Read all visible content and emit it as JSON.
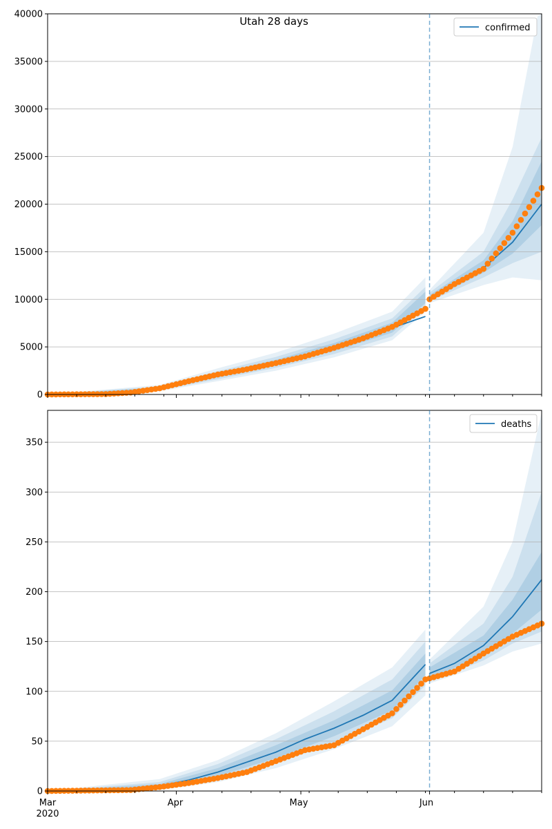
{
  "figure": {
    "title": "Utah 28 days",
    "year_label": "2020",
    "x_tick_labels": [
      "Mar",
      "Apr",
      "May",
      "Jun"
    ],
    "forecast_line_date": "2020-06-01"
  },
  "colors": {
    "model": "#1f77b4",
    "observed": "#ff7f0e",
    "band": "#1f77b4",
    "grid": "#b0b0b0",
    "forecast_line": "#1f77b4"
  },
  "chart_data": [
    {
      "type": "line",
      "name_key": "confirmed",
      "legend": "confirmed",
      "legend_position": "top-right",
      "grid": "horizontal",
      "x_start_date": "2020-03-01",
      "x_end_date": "2020-06-28",
      "ylim": [
        0,
        40000
      ],
      "yticks": [
        0,
        5000,
        10000,
        15000,
        20000,
        25000,
        30000,
        35000,
        40000
      ],
      "model_anchors": [
        [
          "2020-03-01",
          0
        ],
        [
          "2020-03-15",
          40
        ],
        [
          "2020-03-21",
          230
        ],
        [
          "2020-03-28",
          650
        ],
        [
          "2020-04-04",
          1350
        ],
        [
          "2020-04-11",
          2000
        ],
        [
          "2020-04-18",
          2650
        ],
        [
          "2020-04-25",
          3300
        ],
        [
          "2020-05-02",
          4050
        ],
        [
          "2020-05-09",
          4950
        ],
        [
          "2020-05-16",
          5950
        ],
        [
          "2020-05-23",
          7000
        ],
        [
          "2020-05-31",
          8200
        ],
        [
          "2020-06-01",
          10000
        ],
        [
          "2020-06-07",
          11700
        ],
        [
          "2020-06-14",
          13300
        ],
        [
          "2020-06-21",
          16000
        ],
        [
          "2020-06-28",
          20000
        ]
      ],
      "observed_anchors": [
        [
          "2020-03-01",
          0
        ],
        [
          "2020-03-15",
          40
        ],
        [
          "2020-03-21",
          200
        ],
        [
          "2020-03-28",
          650
        ],
        [
          "2020-04-04",
          1400
        ],
        [
          "2020-04-11",
          2100
        ],
        [
          "2020-04-18",
          2650
        ],
        [
          "2020-04-25",
          3300
        ],
        [
          "2020-05-02",
          4000
        ],
        [
          "2020-05-09",
          4900
        ],
        [
          "2020-05-16",
          5900
        ],
        [
          "2020-05-23",
          7100
        ],
        [
          "2020-05-31",
          9000
        ],
        [
          "2020-06-01",
          10000
        ],
        [
          "2020-06-07",
          11600
        ],
        [
          "2020-06-14",
          13200
        ],
        [
          "2020-06-21",
          17000
        ],
        [
          "2020-06-28",
          21700
        ]
      ],
      "band_inner_anchors": [
        [
          "2020-03-01",
          0,
          0
        ],
        [
          "2020-03-28",
          550,
          750
        ],
        [
          "2020-04-11",
          1800,
          2250
        ],
        [
          "2020-04-25",
          3050,
          3650
        ],
        [
          "2020-05-09",
          4550,
          5400
        ],
        [
          "2020-05-23",
          6500,
          7550
        ],
        [
          "2020-05-31",
          9600,
          10800
        ],
        [
          "2020-06-01",
          9950,
          10450
        ],
        [
          "2020-06-14",
          12800,
          14100
        ],
        [
          "2020-06-21",
          14800,
          18200
        ],
        [
          "2020-06-28",
          17800,
          24500
        ]
      ],
      "band_mid_anchors": [
        [
          "2020-03-01",
          0,
          0
        ],
        [
          "2020-03-28",
          450,
          850
        ],
        [
          "2020-04-11",
          1600,
          2450
        ],
        [
          "2020-04-25",
          2800,
          3950
        ],
        [
          "2020-05-09",
          4250,
          5800
        ],
        [
          "2020-05-23",
          6100,
          8000
        ],
        [
          "2020-05-31",
          9200,
          11300
        ],
        [
          "2020-06-01",
          9800,
          10700
        ],
        [
          "2020-06-14",
          12300,
          15000
        ],
        [
          "2020-06-21",
          13800,
          20500
        ],
        [
          "2020-06-28",
          15000,
          27000
        ]
      ],
      "band_outer_anchors": [
        [
          "2020-03-01",
          0,
          0
        ],
        [
          "2020-03-28",
          350,
          1000
        ],
        [
          "2020-04-11",
          1400,
          2750
        ],
        [
          "2020-04-25",
          2500,
          4400
        ],
        [
          "2020-05-09",
          3900,
          6400
        ],
        [
          "2020-05-23",
          5700,
          8700
        ],
        [
          "2020-05-31",
          8700,
          12300
        ],
        [
          "2020-06-01",
          9600,
          11000
        ],
        [
          "2020-06-14",
          11500,
          17000
        ],
        [
          "2020-06-21",
          12300,
          26000
        ],
        [
          "2020-06-28",
          12000,
          42000
        ]
      ]
    },
    {
      "type": "line",
      "name_key": "deaths",
      "legend": "deaths",
      "legend_position": "top-right",
      "grid": "horizontal",
      "x_start_date": "2020-03-01",
      "x_end_date": "2020-06-28",
      "ylim": [
        0,
        382
      ],
      "yticks": [
        0,
        50,
        100,
        150,
        200,
        250,
        300,
        350
      ],
      "model_anchors": [
        [
          "2020-03-01",
          0
        ],
        [
          "2020-03-21",
          2
        ],
        [
          "2020-03-28",
          5
        ],
        [
          "2020-04-04",
          11
        ],
        [
          "2020-04-11",
          19
        ],
        [
          "2020-04-18",
          29
        ],
        [
          "2020-04-25",
          39
        ],
        [
          "2020-05-02",
          52
        ],
        [
          "2020-05-09",
          63
        ],
        [
          "2020-05-16",
          76
        ],
        [
          "2020-05-23",
          91
        ],
        [
          "2020-05-31",
          127
        ],
        [
          "2020-06-01",
          118
        ],
        [
          "2020-06-07",
          128
        ],
        [
          "2020-06-14",
          146
        ],
        [
          "2020-06-21",
          175
        ],
        [
          "2020-06-28",
          212
        ]
      ],
      "observed_anchors": [
        [
          "2020-03-01",
          0
        ],
        [
          "2020-03-21",
          1
        ],
        [
          "2020-03-28",
          4
        ],
        [
          "2020-04-04",
          8
        ],
        [
          "2020-04-11",
          13
        ],
        [
          "2020-04-18",
          19
        ],
        [
          "2020-04-25",
          30
        ],
        [
          "2020-05-02",
          41
        ],
        [
          "2020-05-09",
          46
        ],
        [
          "2020-05-16",
          62
        ],
        [
          "2020-05-23",
          78
        ],
        [
          "2020-05-31",
          112
        ],
        [
          "2020-06-01",
          113
        ],
        [
          "2020-06-07",
          120
        ],
        [
          "2020-06-14",
          138
        ],
        [
          "2020-06-21",
          155
        ],
        [
          "2020-06-28",
          168
        ]
      ],
      "band_inner_anchors": [
        [
          "2020-03-01",
          0,
          0
        ],
        [
          "2020-03-28",
          3,
          7
        ],
        [
          "2020-04-11",
          15,
          23
        ],
        [
          "2020-04-25",
          33,
          46
        ],
        [
          "2020-05-09",
          55,
          71
        ],
        [
          "2020-05-23",
          81,
          101
        ],
        [
          "2020-05-31",
          116,
          138
        ],
        [
          "2020-06-01",
          112,
          124
        ],
        [
          "2020-06-14",
          137,
          156
        ],
        [
          "2020-06-21",
          158,
          192
        ],
        [
          "2020-06-28",
          182,
          240
        ]
      ],
      "band_mid_anchors": [
        [
          "2020-03-01",
          0,
          0
        ],
        [
          "2020-03-28",
          2,
          9
        ],
        [
          "2020-04-11",
          12,
          27
        ],
        [
          "2020-04-25",
          28,
          52
        ],
        [
          "2020-05-09",
          48,
          80
        ],
        [
          "2020-05-23",
          73,
          112
        ],
        [
          "2020-05-31",
          106,
          150
        ],
        [
          "2020-06-01",
          110,
          128
        ],
        [
          "2020-06-14",
          131,
          168
        ],
        [
          "2020-06-21",
          148,
          215
        ],
        [
          "2020-06-28",
          160,
          300
        ]
      ],
      "band_outer_anchors": [
        [
          "2020-03-01",
          0,
          0
        ],
        [
          "2020-03-28",
          1,
          12
        ],
        [
          "2020-04-11",
          9,
          31
        ],
        [
          "2020-04-25",
          23,
          58
        ],
        [
          "2020-05-09",
          42,
          90
        ],
        [
          "2020-05-23",
          65,
          124
        ],
        [
          "2020-05-31",
          96,
          162
        ],
        [
          "2020-06-01",
          108,
          132
        ],
        [
          "2020-06-14",
          126,
          185
        ],
        [
          "2020-06-21",
          140,
          250
        ],
        [
          "2020-06-28",
          148,
          380
        ]
      ]
    }
  ]
}
